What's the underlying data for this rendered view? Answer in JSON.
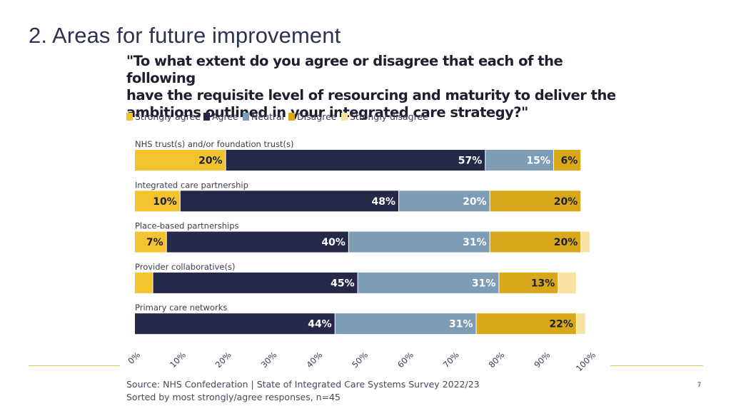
{
  "slide": {
    "title": "2. Areas for future improvement",
    "page_number": "7"
  },
  "footer": {
    "source": "Source: NHS Confederation | State of Integrated Care Systems Survey 2022/23",
    "note": "Sorted by most strongly/agree responses, n=45"
  },
  "colors": {
    "strongly_agree": "#f4c430",
    "agree": "#24294a",
    "neutral": "#7d9cb5",
    "disagree": "#d9a81a",
    "strongly_disagree": "#f7e2a0"
  },
  "chart_data": {
    "type": "bar",
    "orientation": "horizontal-stacked-100",
    "title": "\"To what extent do you agree or disagree that each of the following have the requisite level of resourcing and maturity to deliver the ambitions outlined in your integrated care strategy?\"",
    "title_lines": [
      "\"To what extent do you agree or disagree that each of the following",
      "have the requisite level of resourcing and maturity to deliver the",
      "ambitions outlined in your integrated care strategy?\""
    ],
    "legend": [
      "Strongly agree",
      "Agree",
      "Neutral",
      "Disagree",
      "Strongly disagree"
    ],
    "legend_position": "top-left",
    "categories": [
      "NHS trust(s) and/or foundation trust(s)",
      "Integrated care partnership",
      "Place-based partnerships",
      "Provider collaborative(s)",
      "Primary care networks"
    ],
    "series": [
      {
        "name": "Strongly agree",
        "values": [
          20,
          10,
          7,
          4,
          0
        ],
        "labels": [
          "20%",
          "10%",
          "7%",
          "",
          ""
        ]
      },
      {
        "name": "Agree",
        "values": [
          57,
          48,
          40,
          45,
          44
        ],
        "labels": [
          "57%",
          "48%",
          "40%",
          "45%",
          "44%"
        ]
      },
      {
        "name": "Neutral",
        "values": [
          15,
          20,
          31,
          31,
          31
        ],
        "labels": [
          "15%",
          "20%",
          "31%",
          "31%",
          "31%"
        ]
      },
      {
        "name": "Disagree",
        "values": [
          6,
          20,
          20,
          13,
          22
        ],
        "labels": [
          "6%",
          "20%",
          "20%",
          "13%",
          "22%"
        ]
      },
      {
        "name": "Strongly disagree",
        "values": [
          0,
          0,
          2,
          4,
          2
        ],
        "labels": [
          "",
          "",
          "",
          "",
          ""
        ]
      }
    ],
    "xlim": [
      0,
      100
    ],
    "x_ticks": [
      "0%",
      "10%",
      "20%",
      "30%",
      "40%",
      "50%",
      "60%",
      "70%",
      "80%",
      "90%",
      "100%"
    ]
  }
}
